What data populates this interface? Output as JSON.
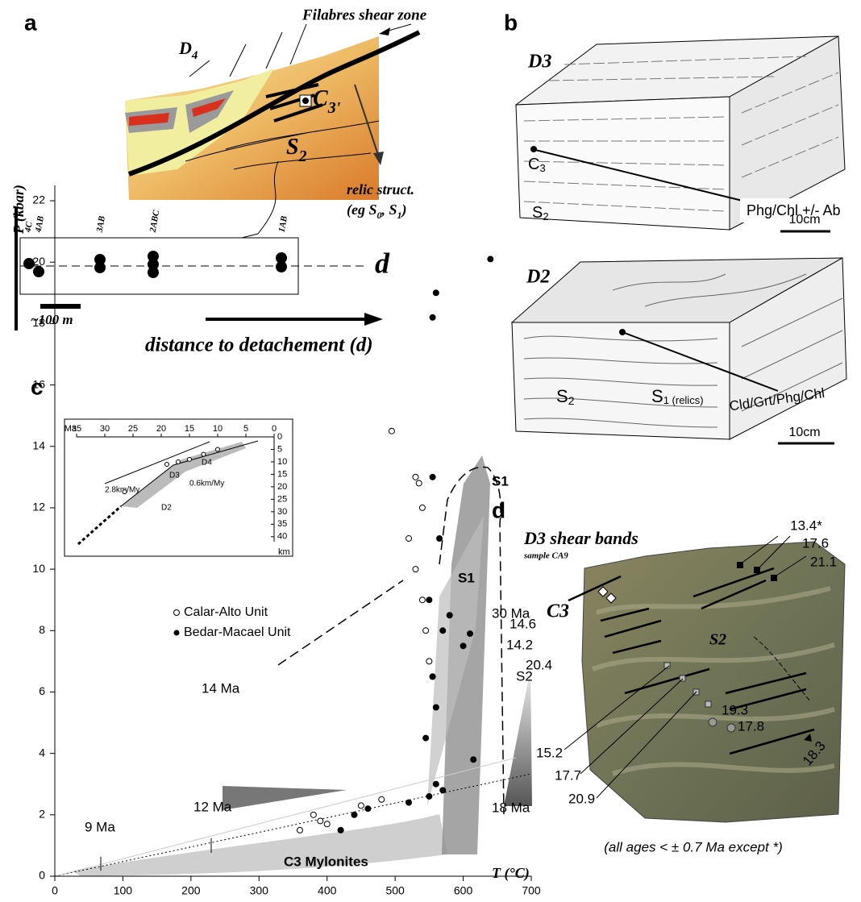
{
  "panel_a": {
    "label": "a",
    "title": "Filabres shear zone",
    "d4": [
      "D",
      "4"
    ],
    "c3": [
      "C",
      "3'"
    ],
    "s2": [
      "S",
      "2"
    ],
    "relic": "relic struct.",
    "relic_eg": [
      "(eg S",
      "0",
      ", S",
      "1",
      ")"
    ],
    "samples": [
      "4C",
      "4AB",
      "3AB",
      "2ABC",
      "1AB"
    ],
    "axis": "d",
    "scale": "~100 m",
    "caption": "distance to detachement (d)"
  },
  "panel_b": {
    "label": "b",
    "d3": {
      "title": "D3",
      "c3": [
        "C",
        "3"
      ],
      "s2": [
        "S",
        "2"
      ],
      "minerals": "Phg/Chl +/- Ab",
      "scale": "10cm"
    },
    "d2": {
      "title": "D2",
      "s2": [
        "S",
        "2"
      ],
      "s1": [
        "S",
        "1 (relics)"
      ],
      "minerals": "Cld/Grt/Phg/Chl",
      "scale": "10cm"
    }
  },
  "chart_data": [
    {
      "type": "scatter",
      "label": "c",
      "xlabel": "T (°C)",
      "ylabel": "P (kbar)",
      "xlim": [
        0,
        700
      ],
      "ylim": [
        0,
        22.5
      ],
      "xticks": [
        0,
        100,
        200,
        300,
        400,
        500,
        600,
        700
      ],
      "yticks": [
        0,
        2,
        4,
        6,
        8,
        10,
        12,
        14,
        16,
        18,
        20,
        22
      ],
      "series": [
        {
          "name": "Calar-Alto Unit",
          "marker": "open",
          "color": "#000000",
          "x": [
            495,
            530,
            535,
            540,
            520,
            530,
            540,
            545,
            550,
            555,
            360,
            380,
            390,
            400,
            450,
            480
          ],
          "y": [
            14.5,
            13,
            12.8,
            12,
            11,
            10,
            9,
            8,
            7,
            6.5,
            1.5,
            2,
            1.8,
            1.7,
            2.3,
            2.5
          ]
        },
        {
          "name": "Bedar-Macael Unit",
          "marker": "filled",
          "color": "#000000",
          "x": [
            555,
            560,
            640,
            555,
            565,
            550,
            570,
            600,
            610,
            555,
            580,
            560,
            545,
            615,
            560,
            550,
            440,
            420,
            460,
            520,
            570
          ],
          "y": [
            18.2,
            19,
            20.1,
            13,
            11,
            9,
            8,
            7.5,
            7.9,
            6.5,
            8.5,
            5.5,
            4.5,
            3.8,
            3,
            2.6,
            2,
            1.5,
            2.2,
            2.4,
            2.8
          ]
        }
      ],
      "annotations": {
        "s1_top": "S1",
        "s1_mid": "S1",
        "age30": "30 Ma",
        "s2": "S2",
        "age14": "14 Ma",
        "age18": "18 Ma",
        "age12": "12 Ma",
        "age9": "9 Ma",
        "mylonites": "C3 Mylonites"
      }
    },
    {
      "type": "line",
      "xlabel": "Ma",
      "ylabel": "km",
      "xlim": [
        35,
        0
      ],
      "ylim": [
        42,
        0
      ],
      "xticks": [
        35,
        30,
        25,
        20,
        15,
        10,
        5,
        0
      ],
      "yticks": [
        0,
        5,
        10,
        15,
        20,
        25,
        30,
        35,
        40
      ],
      "series": [
        {
          "color": "#000000",
          "x": [
            26.5,
            19,
            17,
            15,
            12.5,
            10
          ],
          "y": [
            22,
            11,
            10,
            9,
            7,
            5
          ]
        }
      ],
      "annotations": {
        "d4": "D4",
        "d3": "D3",
        "d2": "D2",
        "rate_d2": "2.8km/My",
        "rate_d3": "0.6km/My"
      }
    }
  ],
  "panel_d": {
    "label": "d",
    "title": "D3 shear bands",
    "sample": "sample CA9",
    "c3": "C3",
    "s2": "S2",
    "ages": [
      "13.4*",
      "17.6",
      "21.1",
      "14.6",
      "14.2",
      "20.4",
      "19.3",
      "17.8",
      "18.3",
      "15.2",
      "17.7",
      "20.9"
    ],
    "note": "(all ages < ± 0.7 Ma except *)"
  }
}
